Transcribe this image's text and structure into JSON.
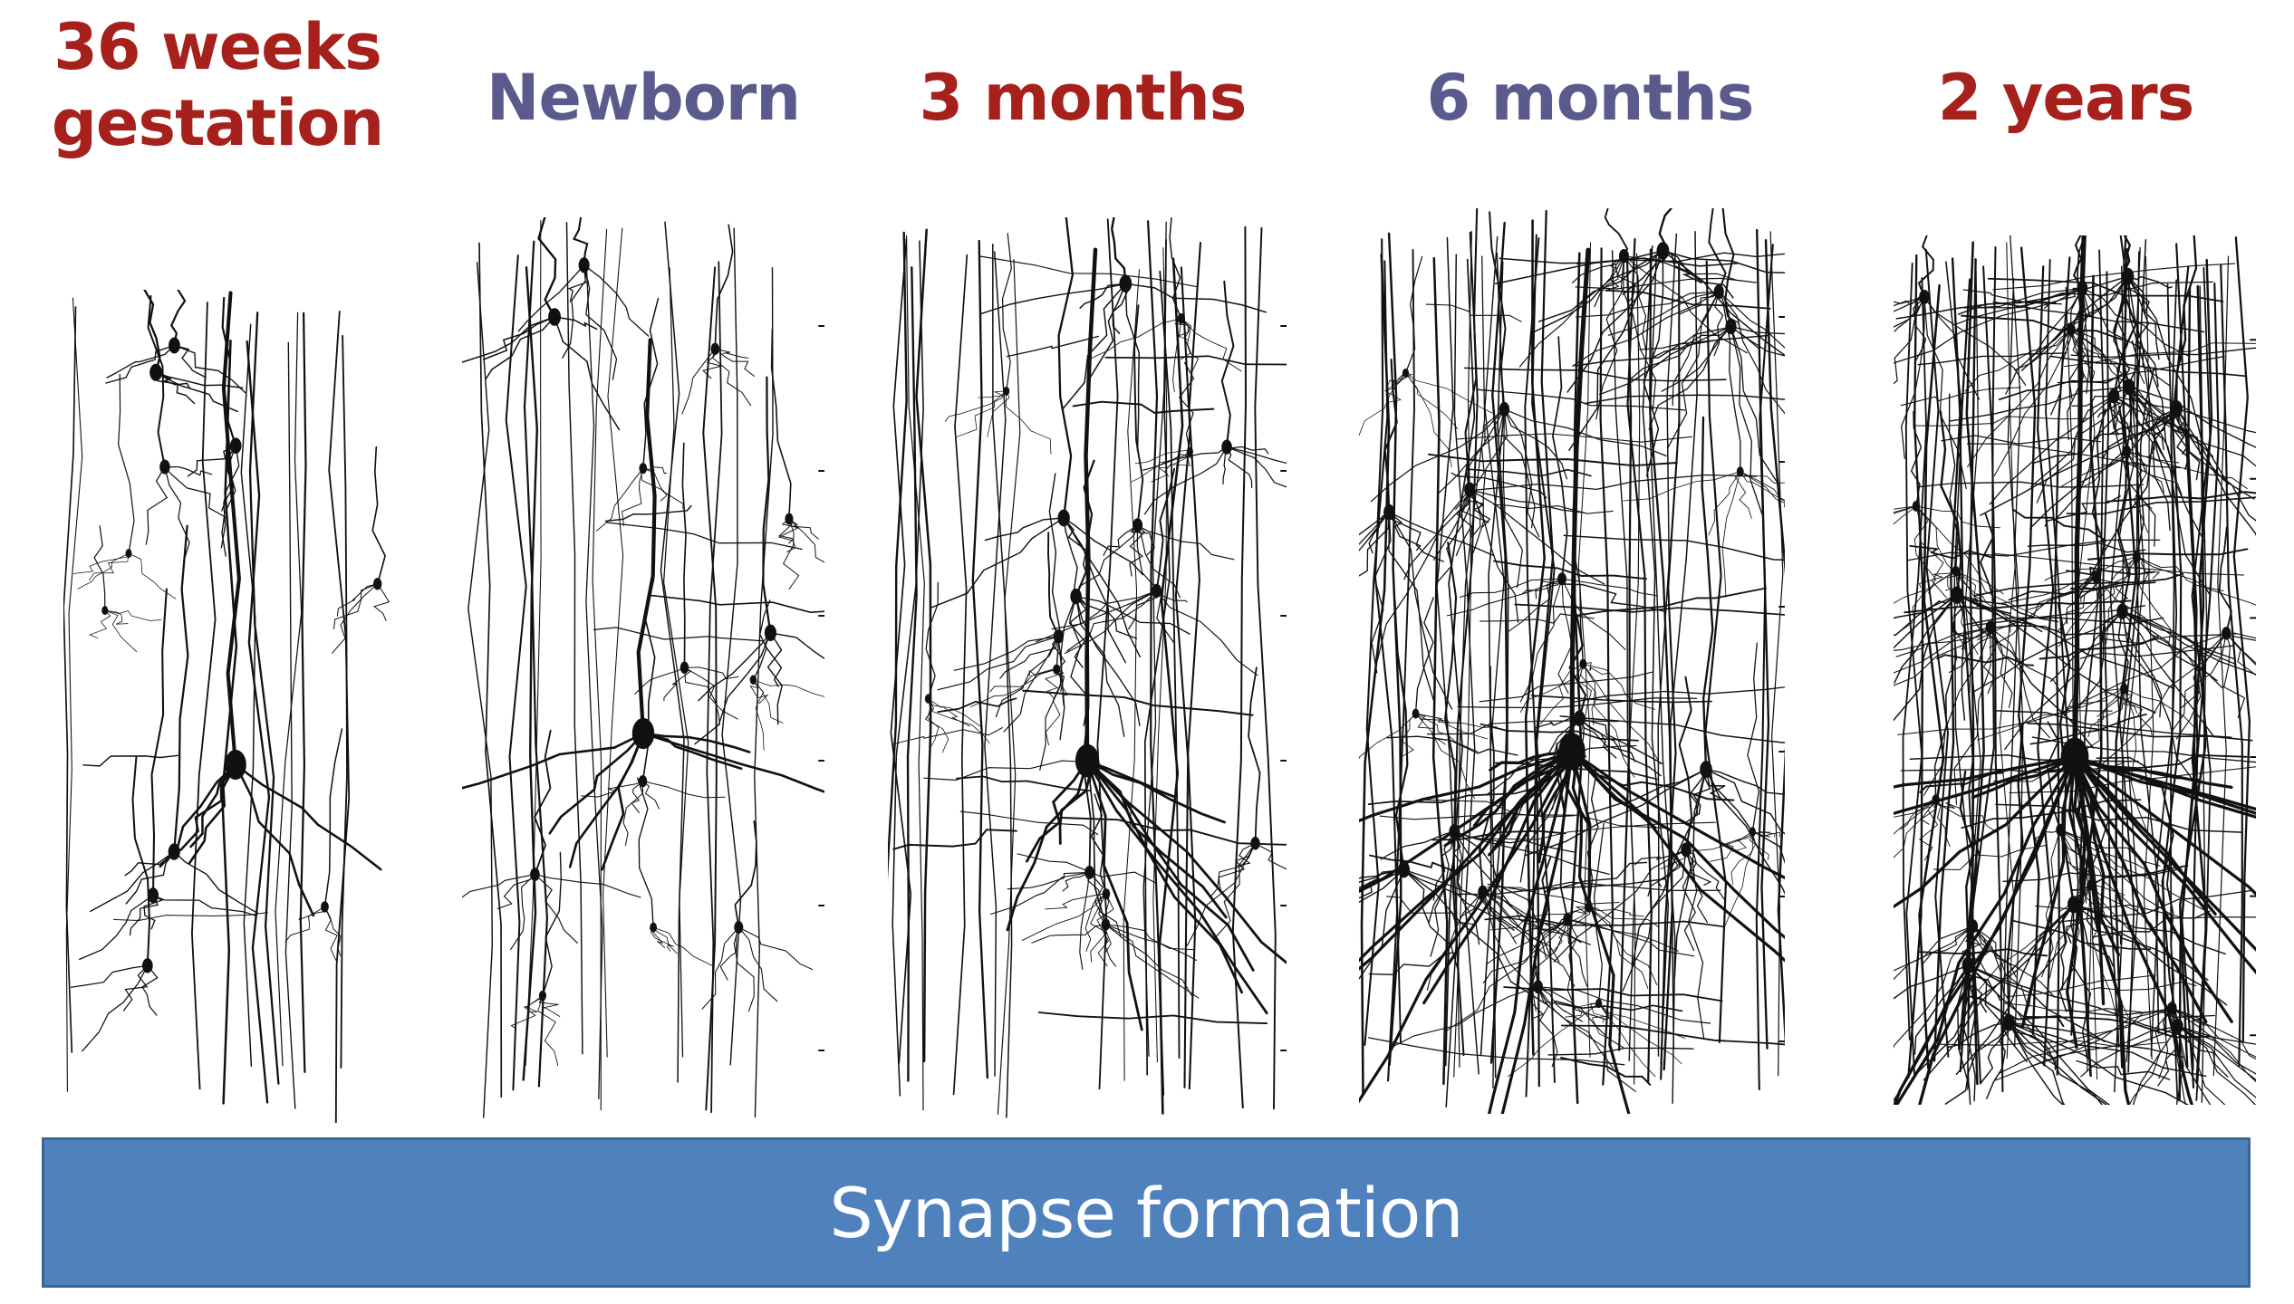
{
  "colors": {
    "red_label": "#a6201c",
    "purple_label": "#5a5a8c",
    "banner_fill": "#4f81bd",
    "banner_text": "#ffffff",
    "ink": "#111111"
  },
  "stages": [
    {
      "id": "36w",
      "lines": [
        "36 weeks",
        "gestation"
      ],
      "color": "red_label",
      "density": 0.15
    },
    {
      "id": "nb",
      "lines": [
        "Newborn"
      ],
      "color": "purple_label",
      "density": 0.25
    },
    {
      "id": "3m",
      "lines": [
        "3 months"
      ],
      "color": "red_label",
      "density": 0.45
    },
    {
      "id": "6m",
      "lines": [
        "6 months"
      ],
      "color": "purple_label",
      "density": 0.85
    },
    {
      "id": "2y",
      "lines": [
        "2 years"
      ],
      "color": "red_label",
      "density": 1.0
    }
  ],
  "banner": {
    "text": "Synapse formation"
  }
}
